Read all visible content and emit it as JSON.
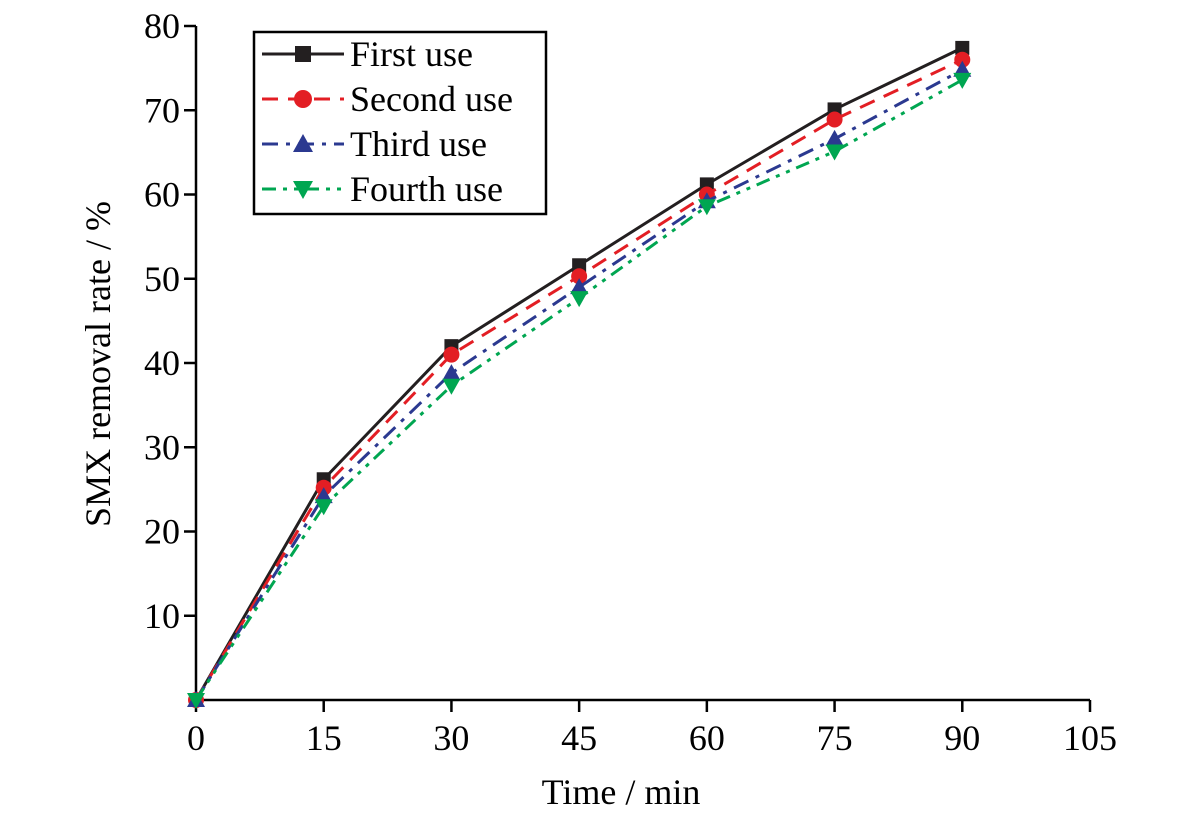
{
  "chart_data": {
    "type": "line",
    "title": "",
    "xlabel": "Time / min",
    "ylabel": "SMX removal rate / %",
    "x": [
      0,
      15,
      30,
      45,
      60,
      75,
      90
    ],
    "xlim": [
      0,
      105
    ],
    "ylim": [
      0,
      80
    ],
    "xticks": [
      "0",
      "15",
      "30",
      "45",
      "60",
      "75",
      "90",
      "105"
    ],
    "yticks": [
      "10",
      "20",
      "30",
      "40",
      "50",
      "60",
      "70",
      "80"
    ],
    "grid": false,
    "legend_position": "top-left",
    "series": [
      {
        "name": "First use",
        "values": [
          0,
          26.2,
          42.0,
          51.6,
          61.2,
          70.1,
          77.4
        ],
        "color": "#231f20",
        "dash": "solid",
        "marker": "square"
      },
      {
        "name": "Second use",
        "values": [
          0,
          25.2,
          41.0,
          50.3,
          60.0,
          68.9,
          76.0
        ],
        "color": "#e31e24",
        "dash": "dash",
        "marker": "circle"
      },
      {
        "name": "Third use",
        "values": [
          0,
          24.2,
          38.8,
          49.0,
          59.2,
          66.6,
          74.8
        ],
        "color": "#2b3990",
        "dash": "dashdot",
        "marker": "triangle-up"
      },
      {
        "name": "Fourth use",
        "values": [
          0,
          23.0,
          37.3,
          47.7,
          58.6,
          65.1,
          73.6
        ],
        "color": "#00a651",
        "dash": "dashdotdot",
        "marker": "triangle-down"
      }
    ]
  }
}
